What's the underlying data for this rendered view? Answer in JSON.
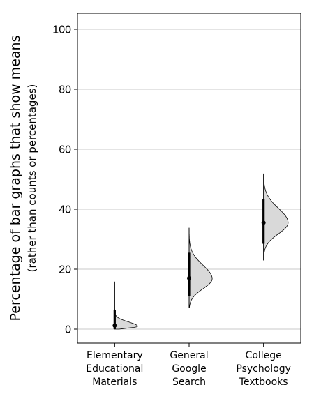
{
  "chart_data": {
    "type": "violin",
    "ylabel": "Percentage of bar graphs that show means",
    "ylabel_sub": "(rather than counts or percentages)",
    "ylim": [
      -5,
      105
    ],
    "yticks": [
      0,
      20,
      40,
      60,
      80,
      100
    ],
    "grid": true,
    "categories": [
      {
        "lines": [
          "Elementary",
          "Educational",
          "Materials"
        ],
        "mean": 1.2,
        "ci": [
          0,
          6.5
        ],
        "range": [
          0,
          15.8
        ],
        "peak": 0.9,
        "max_width": 0.62,
        "sd_low": 0.5,
        "sd_high": 1.5
      },
      {
        "lines": [
          "General",
          "Google",
          "Search"
        ],
        "mean": 17.0,
        "ci": [
          11.0,
          25.5
        ],
        "range": [
          7.2,
          33.8
        ],
        "peak": 16.8,
        "max_width": 0.62,
        "sd_low": 3.3,
        "sd_high": 4.5
      },
      {
        "lines": [
          "College",
          "Psychology",
          "Textbooks"
        ],
        "mean": 35.5,
        "ci": [
          28.5,
          43.5
        ],
        "range": [
          23.0,
          51.8
        ],
        "peak": 35.5,
        "max_width": 0.66,
        "sd_low": 3.7,
        "sd_high": 4.8
      }
    ]
  }
}
